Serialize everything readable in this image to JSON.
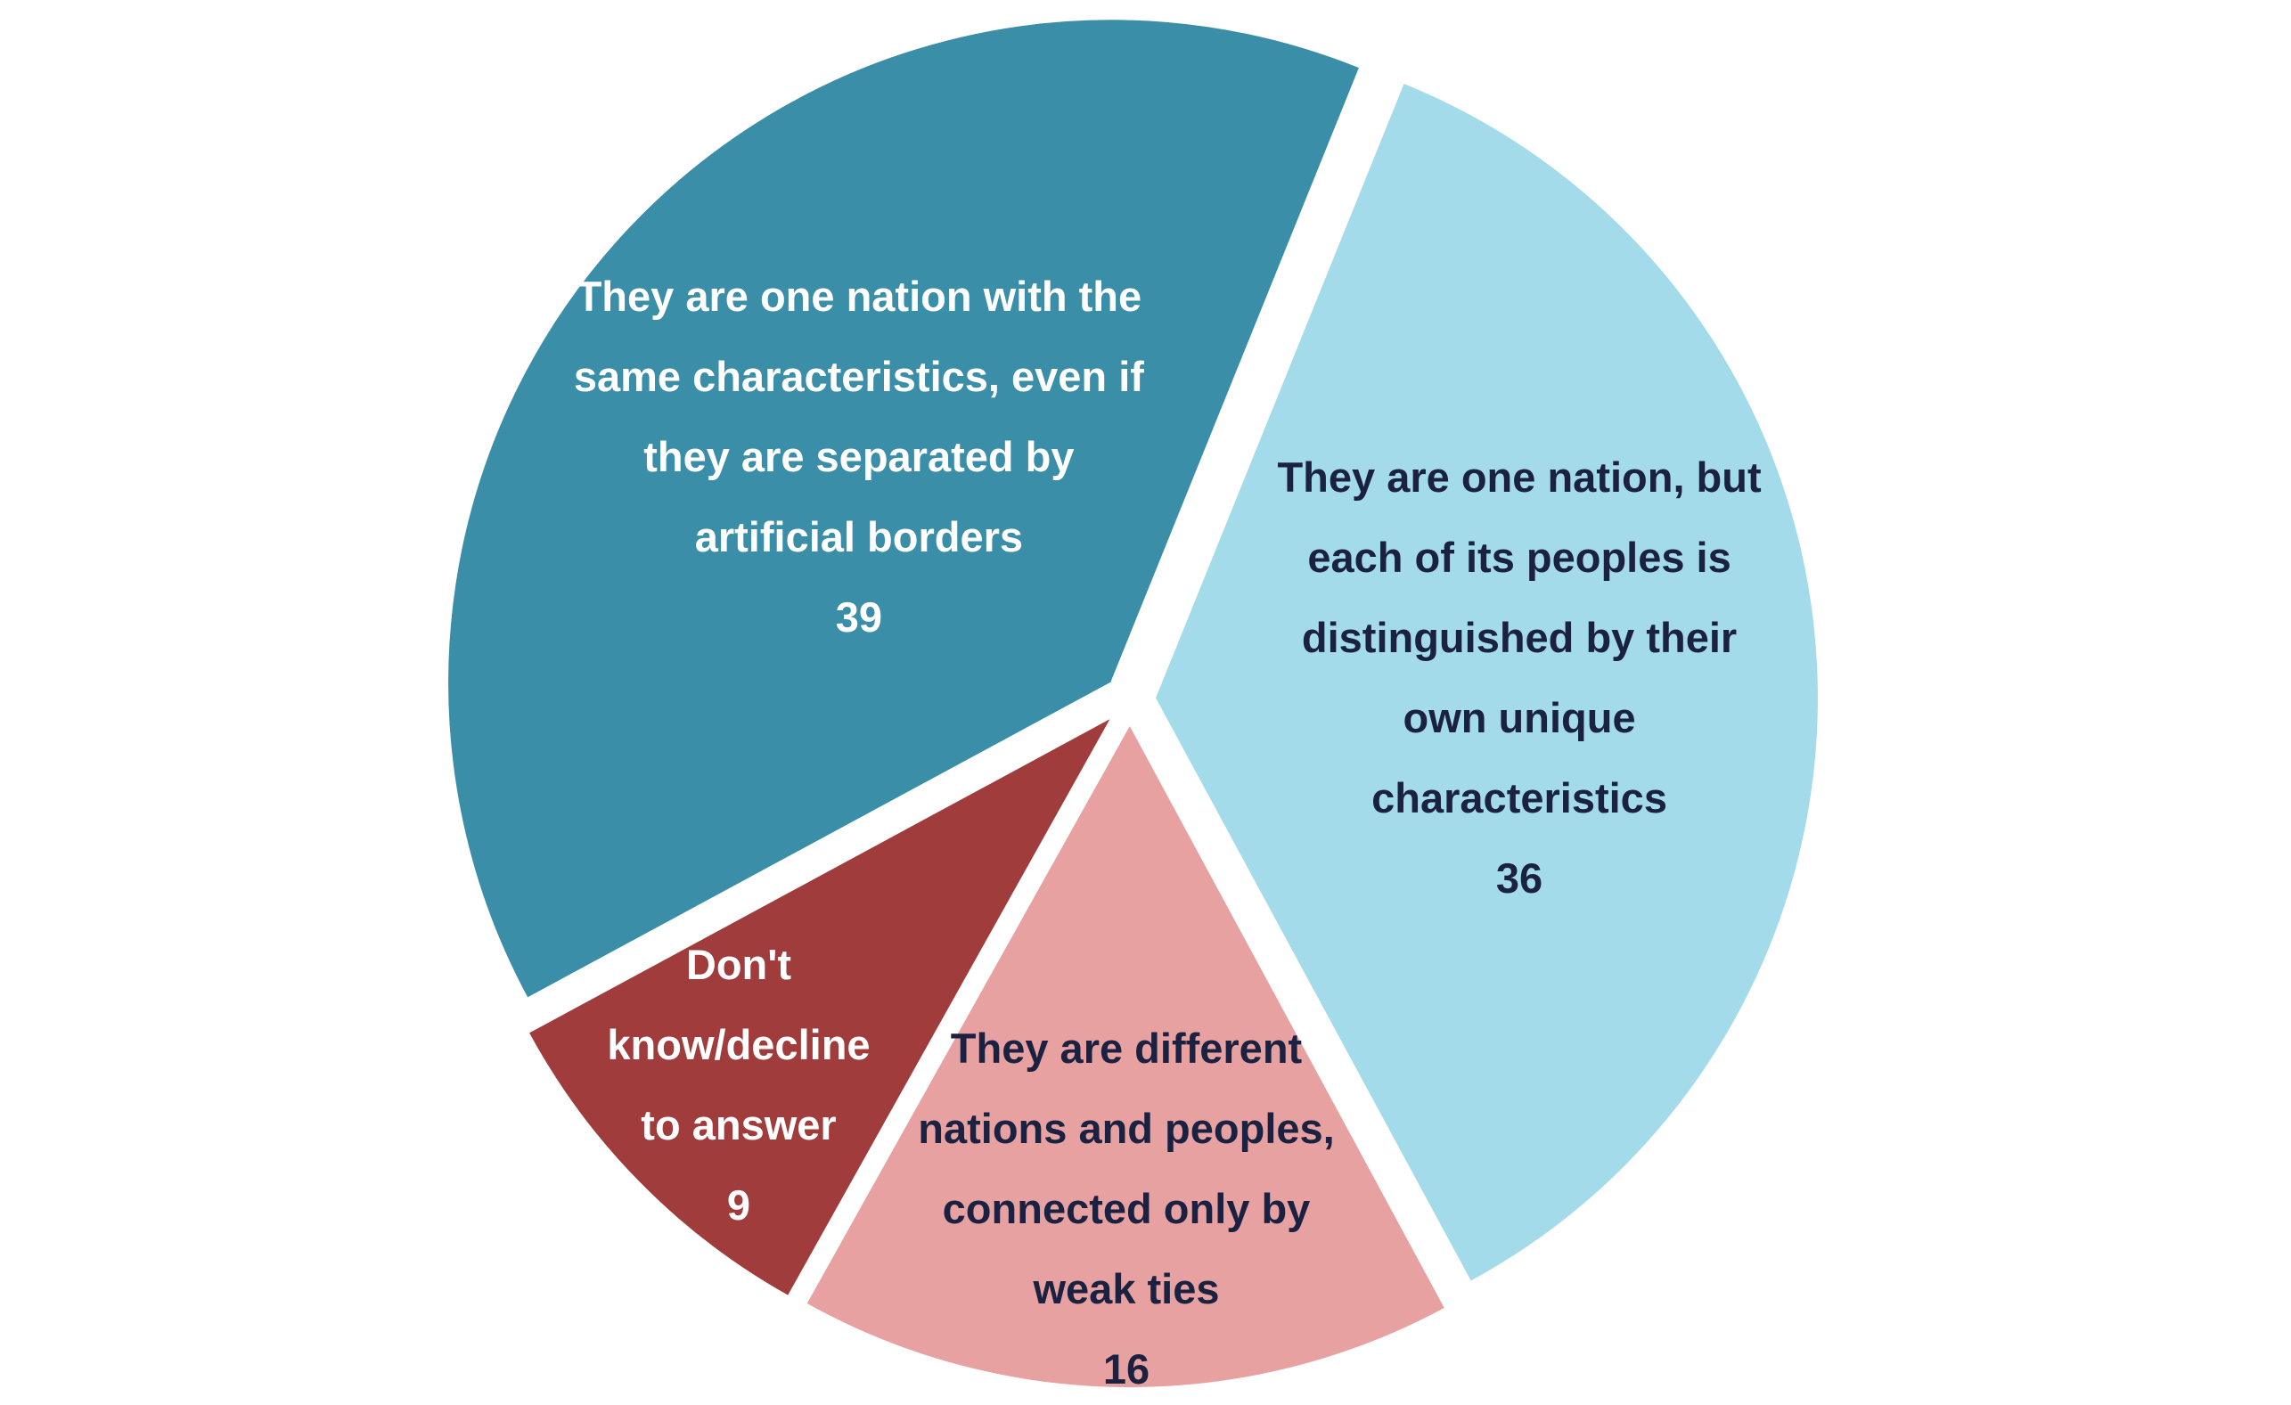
{
  "chart_data": {
    "type": "pie",
    "categories": [
      "They are one nation with the same characteristics, even if they are separated by artificial borders",
      "They are one nation, but each of its peoples is distinguished by their own unique characteristics",
      "They are different nations and peoples, connected only by weak ties",
      "Don't know/decline to answer"
    ],
    "values": [
      39,
      36,
      16,
      9
    ],
    "colors": [
      "#3a8ea7",
      "#a3dbea",
      "#e7a1a0",
      "#a03c3b"
    ]
  }
}
